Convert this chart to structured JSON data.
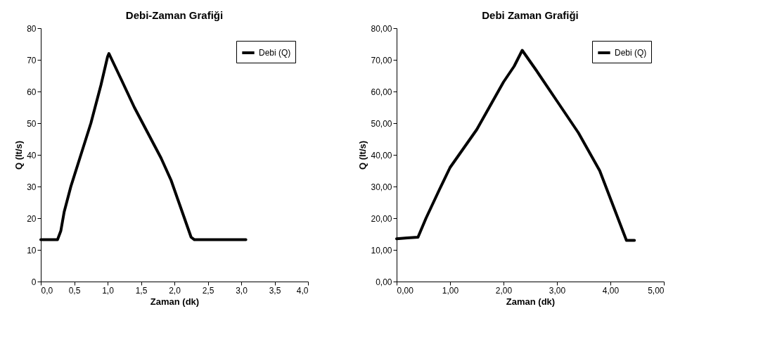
{
  "chart_data": [
    {
      "type": "line",
      "title": "Debi-Zaman Grafiği",
      "xlabel": "Zaman (dk)",
      "ylabel": "Q  (lt/s)",
      "legend": "top right",
      "grid": false,
      "marker": "none",
      "line_style": "solid",
      "xlim": [
        0,
        4
      ],
      "xticks": [
        {
          "value": 0,
          "label": "0,0"
        },
        {
          "value": 0.5,
          "label": "0,5"
        },
        {
          "value": 1,
          "label": "1,0"
        },
        {
          "value": 1.5,
          "label": "1,5"
        },
        {
          "value": 2,
          "label": "2,0"
        },
        {
          "value": 2.5,
          "label": "2,5"
        },
        {
          "value": 3,
          "label": "3,0"
        },
        {
          "value": 3.5,
          "label": "3,5"
        },
        {
          "value": 4,
          "label": "4,0"
        }
      ],
      "ylim": [
        0,
        80
      ],
      "yticks": [
        0,
        10,
        20,
        30,
        40,
        50,
        60,
        70,
        80
      ],
      "series": [
        {
          "name": "Debi (Q)",
          "color": "#000000",
          "x": [
            0,
            0.25,
            0.3,
            0.35,
            0.45,
            0.6,
            0.75,
            0.9,
            1.0,
            1.02,
            1.2,
            1.4,
            1.6,
            1.8,
            1.95,
            2.1,
            2.25,
            2.3,
            2.7,
            3.07
          ],
          "values": [
            13.2,
            13.2,
            16,
            22,
            30,
            40,
            50,
            62,
            71,
            72,
            64,
            55,
            47,
            39,
            32,
            23,
            14,
            13.2,
            13.2,
            13.2
          ]
        }
      ]
    },
    {
      "type": "line",
      "title": "Debi Zaman Grafiği",
      "xlabel": "Zaman (dk)",
      "ylabel": "Q  (lt/s)",
      "legend": "top right",
      "grid": false,
      "marker": "none",
      "line_style": "solid",
      "xlim": [
        0,
        5
      ],
      "xticks": [
        {
          "value": 0,
          "label": "0,00"
        },
        {
          "value": 1,
          "label": "1,00"
        },
        {
          "value": 2,
          "label": "2,00"
        },
        {
          "value": 3,
          "label": "3,00"
        },
        {
          "value": 4,
          "label": "4,00"
        },
        {
          "value": 5,
          "label": "5,00"
        }
      ],
      "ylim": [
        0,
        80
      ],
      "yticks": [
        {
          "value": 0,
          "label": "0,00"
        },
        {
          "value": 10,
          "label": "10,00"
        },
        {
          "value": 20,
          "label": "20,00"
        },
        {
          "value": 30,
          "label": "30,00"
        },
        {
          "value": 40,
          "label": "40,00"
        },
        {
          "value": 50,
          "label": "50,00"
        },
        {
          "value": 60,
          "label": "60,00"
        },
        {
          "value": 70,
          "label": "70,00"
        },
        {
          "value": 80,
          "label": "80,00"
        }
      ],
      "series": [
        {
          "name": "Debi (Q)",
          "color": "#000000",
          "x": [
            0,
            0.2,
            0.4,
            0.55,
            0.8,
            1.0,
            1.5,
            2.0,
            2.2,
            2.35,
            2.6,
            3.0,
            3.4,
            3.8,
            4.05,
            4.3,
            4.45
          ],
          "values": [
            13.5,
            13.8,
            14,
            20,
            29,
            36,
            48,
            63,
            68,
            73,
            67,
            57,
            47,
            35,
            24,
            13,
            13
          ]
        }
      ]
    }
  ]
}
